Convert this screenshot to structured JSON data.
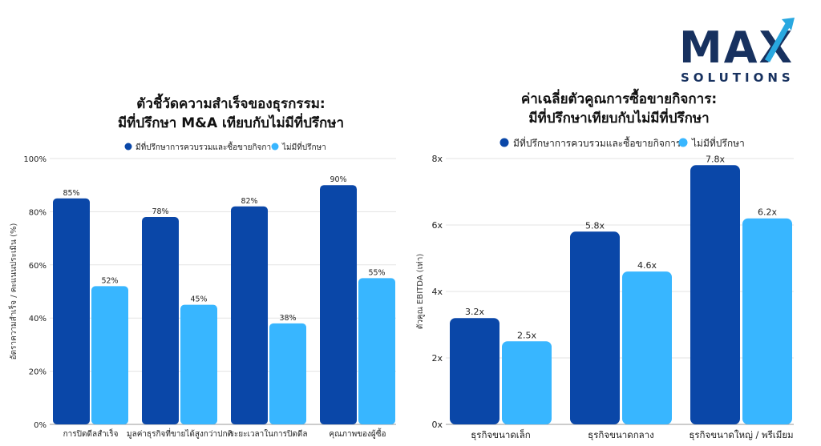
{
  "logo": {
    "word": "MAX",
    "subtitle": "SOLUTIONS",
    "color": "#17315f",
    "accent": "#29a8e0"
  },
  "colors": {
    "series_dark": "#0a47a8",
    "series_light": "#38b6ff"
  },
  "chart_data": [
    {
      "type": "bar",
      "title": [
        "ตัวชี้วัดความสำเร็จของธุรกรรม:",
        "มีที่ปรึกษา M&A เทียบกับไม่มีที่ปรึกษา"
      ],
      "ylabel": "อัตราความสำเร็จ / คะแนนประเมิน (%)",
      "xlabel": "",
      "categories": [
        "การปิดดีลสำเร็จ",
        "มูลค่าธุรกิจที่ขายได้สูงกว่าปกติ",
        "ระยะเวลาในการปิดดีล",
        "คุณภาพของผู้ซื้อ"
      ],
      "series": [
        {
          "name": "มีที่ปรึกษาการควบรวมและซื้อขายกิจการ",
          "values": [
            85,
            78,
            82,
            90
          ],
          "labels": [
            "85%",
            "78%",
            "82%",
            "90%"
          ]
        },
        {
          "name": "ไม่มีที่ปรึกษา",
          "values": [
            52,
            45,
            38,
            55
          ],
          "labels": [
            "52%",
            "45%",
            "38%",
            "55%"
          ]
        }
      ],
      "ylim": [
        0,
        100
      ],
      "yticks": [
        0,
        20,
        40,
        60,
        80,
        100
      ],
      "ytick_labels": [
        "0%",
        "20%",
        "40%",
        "60%",
        "80%",
        "100%"
      ],
      "grid": true,
      "legend": "top"
    },
    {
      "type": "bar",
      "title": [
        "ค่าเฉลี่ยตัวคูณการซื้อขายกิจการ:",
        "มีที่ปรึกษาเทียบกับไม่มีที่ปรึกษา"
      ],
      "ylabel": "ตัวคูณ EBITDA (เท่า)",
      "xlabel": "",
      "categories": [
        "ธุรกิจขนาดเล็ก",
        "ธุรกิจขนาดกลาง",
        "ธุรกิจขนาดใหญ่ / พรีเมียม"
      ],
      "series": [
        {
          "name": "มีที่ปรึกษาการควบรวมและซื้อขายกิจการ",
          "values": [
            3.2,
            5.8,
            7.8
          ],
          "labels": [
            "3.2x",
            "5.8x",
            "7.8x"
          ]
        },
        {
          "name": "ไม่มีที่ปรึกษา",
          "values": [
            2.5,
            4.6,
            6.2
          ],
          "labels": [
            "2.5x",
            "4.6x",
            "6.2x"
          ]
        }
      ],
      "ylim": [
        0,
        8
      ],
      "yticks": [
        0,
        2,
        4,
        6,
        8
      ],
      "ytick_labels": [
        "0x",
        "2x",
        "4x",
        "6x",
        "8x"
      ],
      "grid": true,
      "legend": "top"
    }
  ]
}
